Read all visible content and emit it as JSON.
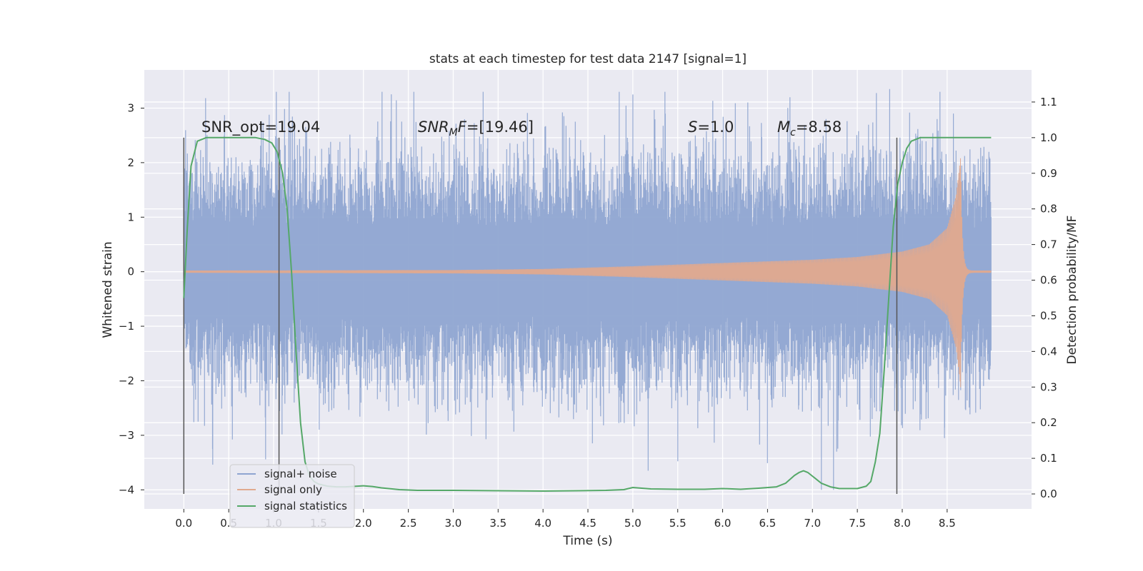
{
  "chart_data": {
    "type": "line",
    "title": "stats at each timestep for test data 2147 [signal=1]",
    "xlabel": "Time (s)",
    "ylabel": "Whitened strain",
    "y2label": "Detection probability/MF",
    "xlim": [
      -0.44,
      9.44
    ],
    "ylim": [
      -4.35,
      3.7
    ],
    "y2lim": [
      -0.042,
      1.19
    ],
    "xticks": [
      "0.0",
      "0.5",
      "1.0",
      "1.5",
      "2.0",
      "2.5",
      "3.0",
      "3.5",
      "4.0",
      "4.5",
      "5.0",
      "5.5",
      "6.0",
      "6.5",
      "7.0",
      "7.5",
      "8.0",
      "8.5"
    ],
    "yticks": [
      "3",
      "2",
      "1",
      "0",
      "−1",
      "−2",
      "−3",
      "−4"
    ],
    "y2ticks": [
      "1.1",
      "1.0",
      "0.9",
      "0.8",
      "0.7",
      "0.6",
      "0.5",
      "0.4",
      "0.3",
      "0.2",
      "0.1",
      "0.0"
    ],
    "grid": true,
    "legend_position": "lower-left",
    "annotations": {
      "snr_opt": "SNR_opt=19.04",
      "snr_mf_label": "SNR",
      "snr_mf_sub": "M",
      "snr_mf_rest": "F",
      "snr_mf_value": "=[19.46]",
      "s_label": "S",
      "s_value": "=1.0",
      "mc_label": "M",
      "mc_sub": "c",
      "mc_value": "=8.58"
    },
    "vertical_markers": [
      0.0,
      1.06,
      7.94
    ],
    "noise": {
      "x_start": 0.0,
      "x_end": 8.99,
      "typical_amplitude": 1.35,
      "peak_max": 3.3,
      "peak_min": -4.0
    },
    "chirp": {
      "x_start": 0.0,
      "merger_x": 8.65,
      "x_end": 8.99,
      "max_amplitude": 2.1,
      "envelope_x": [
        0.0,
        3.0,
        4.0,
        5.0,
        6.0,
        7.0,
        7.5,
        8.0,
        8.3,
        8.5,
        8.6,
        8.65
      ],
      "envelope_y": [
        0.02,
        0.03,
        0.05,
        0.1,
        0.16,
        0.22,
        0.27,
        0.37,
        0.5,
        0.8,
        1.4,
        2.1
      ]
    },
    "series": [
      {
        "name": "signal+ noise",
        "color": "#8fa5d1"
      },
      {
        "name": "signal only",
        "color": "#e0a98e"
      },
      {
        "name": "signal statistics",
        "color": "#55a868",
        "x": [
          0.0,
          0.04,
          0.08,
          0.15,
          0.25,
          0.4,
          0.6,
          0.8,
          0.9,
          0.98,
          1.04,
          1.1,
          1.15,
          1.2,
          1.25,
          1.3,
          1.35,
          1.4,
          1.45,
          1.5,
          1.6,
          1.7,
          1.8,
          2.0,
          2.1,
          2.2,
          2.4,
          2.6,
          3.0,
          3.5,
          4.0,
          4.4,
          4.7,
          4.9,
          5.0,
          5.2,
          5.5,
          5.8,
          6.0,
          6.2,
          6.4,
          6.6,
          6.7,
          6.8,
          6.85,
          6.9,
          6.95,
          7.0,
          7.1,
          7.2,
          7.3,
          7.5,
          7.6,
          7.65,
          7.7,
          7.75,
          7.8,
          7.85,
          7.9,
          7.95,
          8.0,
          8.05,
          8.1,
          8.2,
          8.3,
          8.5,
          8.8,
          8.99
        ],
        "y": [
          0.55,
          0.75,
          0.92,
          0.99,
          1.0,
          1.0,
          1.0,
          1.0,
          0.995,
          0.985,
          0.96,
          0.9,
          0.8,
          0.62,
          0.4,
          0.2,
          0.09,
          0.05,
          0.035,
          0.028,
          0.022,
          0.02,
          0.02,
          0.023,
          0.021,
          0.017,
          0.012,
          0.01,
          0.01,
          0.009,
          0.008,
          0.009,
          0.01,
          0.012,
          0.018,
          0.014,
          0.013,
          0.013,
          0.015,
          0.013,
          0.016,
          0.02,
          0.03,
          0.052,
          0.06,
          0.065,
          0.06,
          0.05,
          0.03,
          0.02,
          0.015,
          0.015,
          0.022,
          0.035,
          0.09,
          0.17,
          0.35,
          0.55,
          0.75,
          0.87,
          0.93,
          0.97,
          0.99,
          1.0,
          1.0,
          1.0,
          1.0,
          1.0
        ]
      }
    ]
  }
}
